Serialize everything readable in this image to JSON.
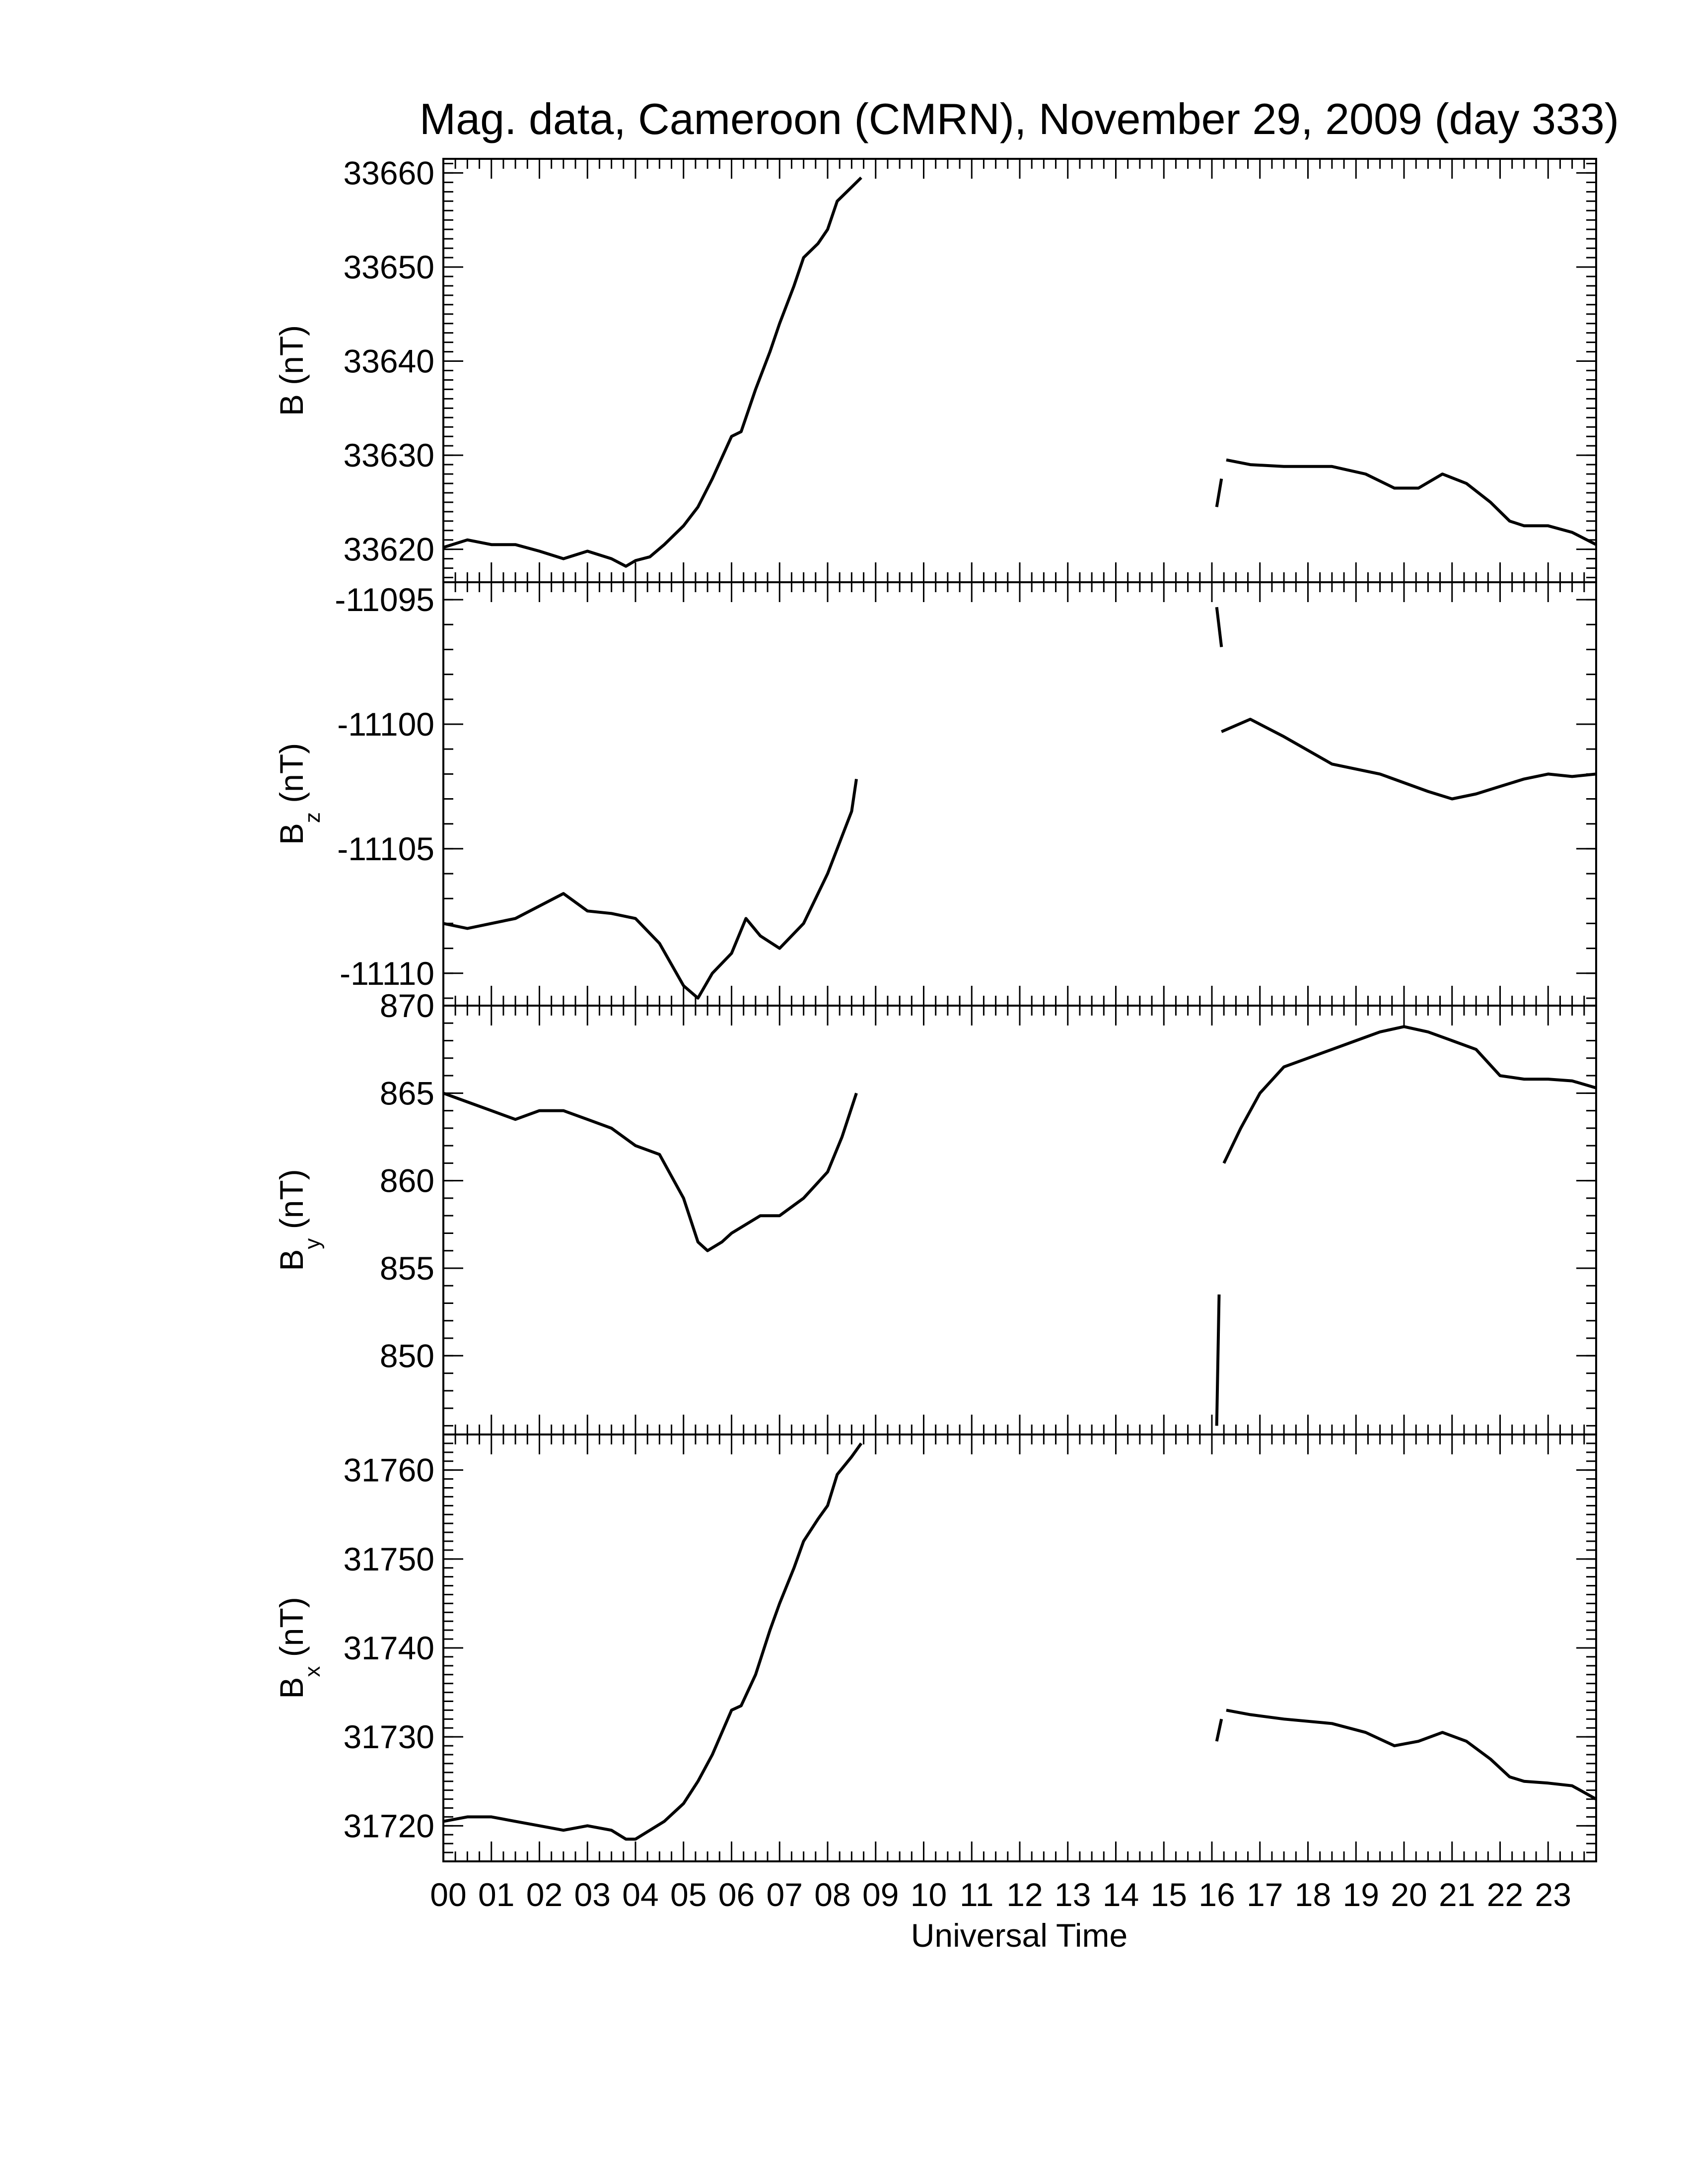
{
  "title": "Mag. data, Cameroon (CMRN), November 29, 2009 (day 333)",
  "xlabel": "Universal Time",
  "x_tick_labels": [
    "00",
    "01",
    "02",
    "03",
    "04",
    "05",
    "06",
    "07",
    "08",
    "09",
    "10",
    "11",
    "12",
    "13",
    "14",
    "15",
    "16",
    "17",
    "18",
    "19",
    "20",
    "21",
    "22",
    "23"
  ],
  "xlim": [
    0,
    24
  ],
  "chart_data": [
    {
      "type": "line",
      "ylabel": "B (nT)",
      "ylim": [
        33616.5,
        33661.5
      ],
      "yticks": [
        33620,
        33630,
        33640,
        33650,
        33660
      ],
      "series": [
        {
          "segments": [
            {
              "x": [
                0.0,
                0.5,
                1.0,
                1.5,
                2.0,
                2.5,
                3.0,
                3.5,
                3.8,
                4.0,
                4.3,
                4.6,
                5.0,
                5.3,
                5.6,
                6.0,
                6.2,
                6.5,
                6.8,
                7.0,
                7.3,
                7.5,
                7.8,
                8.0,
                8.2,
                8.5,
                8.7
              ],
              "y": [
                33620.2,
                33621,
                33620.5,
                33620.5,
                33619.8,
                33619,
                33619.8,
                33619,
                33618.2,
                33618.8,
                33619.2,
                33620.5,
                33622.5,
                33624.5,
                33627.5,
                33632,
                33632.5,
                33637,
                33641,
                33644,
                33648,
                33651,
                33652.5,
                33654,
                33657,
                33658.5,
                33659.5
              ]
            },
            {
              "x": [
                16.1,
                16.2
              ],
              "y": [
                33624.5,
                33627.5
              ]
            },
            {
              "x": [
                16.3,
                16.8,
                17.5,
                18.5,
                19.2,
                19.8,
                20.3,
                20.8,
                21.3,
                21.8,
                22.2,
                22.5,
                23.0,
                23.5,
                24.0
              ],
              "y": [
                33629.5,
                33629,
                33628.8,
                33628.8,
                33628,
                33626.5,
                33626.5,
                33628,
                33627,
                33625,
                33623,
                33622.5,
                33622.5,
                33621.8,
                33620.5
              ]
            }
          ]
        }
      ]
    },
    {
      "type": "line",
      "ylabel": "B_z (nT)",
      "ylabel_main": "B",
      "ylabel_sub": "z",
      "ylabel_unit": " (nT)",
      "ylim": [
        -11111.3,
        -11094.3
      ],
      "yticks": [
        -11095,
        -11100,
        -11105,
        -11110
      ],
      "ytick_labels": [
        "-11095",
        "-11100",
        "-11105",
        "-11110"
      ],
      "series": [
        {
          "segments": [
            {
              "x": [
                0.0,
                0.5,
                1.0,
                1.5,
                2.0,
                2.5,
                3.0,
                3.5,
                4.0,
                4.5,
                5.0,
                5.3,
                5.6,
                6.0,
                6.3,
                6.6,
                7.0,
                7.5,
                8.0,
                8.3,
                8.5,
                8.6
              ],
              "y": [
                -11108,
                -11108.2,
                -11108,
                -11107.8,
                -11107.3,
                -11106.8,
                -11107.5,
                -11107.6,
                -11107.8,
                -11108.8,
                -11110.5,
                -11111,
                -11110,
                -11109.2,
                -11107.8,
                -11108.5,
                -11109,
                -11108,
                -11106,
                -11104.5,
                -11103.5,
                -11102.2
              ]
            },
            {
              "x": [
                16.1,
                16.2
              ],
              "y": [
                -11095.3,
                -11096.9
              ]
            },
            {
              "x": [
                16.2,
                16.8,
                17.5,
                18.5,
                19.5,
                20.5,
                21.0,
                21.5,
                22.0,
                22.5,
                23.0,
                23.5,
                24.0
              ],
              "y": [
                -11100.3,
                -11099.8,
                -11100.5,
                -11101.6,
                -11102,
                -11102.7,
                -11103,
                -11102.8,
                -11102.5,
                -11102.2,
                -11102,
                -11102.1,
                -11102
              ]
            }
          ]
        }
      ]
    },
    {
      "type": "line",
      "ylabel": "B_y (nT)",
      "ylabel_main": "B",
      "ylabel_sub": "y",
      "ylabel_unit": " (nT)",
      "ylim": [
        845.5,
        870
      ],
      "yticks": [
        850,
        855,
        860,
        865,
        870
      ],
      "series": [
        {
          "segments": [
            {
              "x": [
                0.0,
                0.5,
                1.0,
                1.5,
                2.0,
                2.5,
                3.0,
                3.5,
                4.0,
                4.5,
                5.0,
                5.3,
                5.5,
                5.8,
                6.0,
                6.3,
                6.6,
                7.0,
                7.5,
                8.0,
                8.3,
                8.6
              ],
              "y": [
                865,
                864.5,
                864,
                863.5,
                864,
                864,
                863.5,
                863,
                862,
                861.5,
                859,
                856.5,
                856,
                856.5,
                857,
                857.5,
                858,
                858,
                859,
                860.5,
                862.5,
                865
              ]
            },
            {
              "x": [
                16.1,
                16.15
              ],
              "y": [
                846,
                853.5
              ]
            },
            {
              "x": [
                16.25,
                16.6,
                17.0,
                17.5,
                18.0,
                18.5,
                19.0,
                19.5,
                20.0,
                20.5,
                21.0,
                21.5,
                22.0,
                22.5,
                23.0,
                23.5,
                24.0
              ],
              "y": [
                861,
                863,
                865,
                866.5,
                867,
                867.5,
                868,
                868.5,
                868.8,
                868.5,
                868,
                867.5,
                866,
                865.8,
                865.8,
                865.7,
                865.3
              ]
            }
          ]
        }
      ]
    },
    {
      "type": "line",
      "ylabel": "B_x (nT)",
      "ylabel_main": "B",
      "ylabel_sub": "x",
      "ylabel_unit": " (nT)",
      "ylim": [
        31716,
        31764
      ],
      "yticks": [
        31720,
        31730,
        31740,
        31750,
        31760
      ],
      "series": [
        {
          "segments": [
            {
              "x": [
                0.0,
                0.5,
                1.0,
                1.5,
                2.0,
                2.5,
                3.0,
                3.5,
                3.8,
                4.0,
                4.3,
                4.6,
                5.0,
                5.3,
                5.6,
                6.0,
                6.2,
                6.5,
                6.8,
                7.0,
                7.3,
                7.5,
                7.8,
                8.0,
                8.2,
                8.5,
                8.7
              ],
              "y": [
                31720.5,
                31721,
                31721,
                31720.5,
                31720,
                31719.5,
                31720,
                31719.5,
                31718.5,
                31718.5,
                31719.5,
                31720.5,
                31722.5,
                31725,
                31728,
                31733,
                31733.5,
                31737,
                31742,
                31745,
                31749,
                31752,
                31754.5,
                31756,
                31759.5,
                31761.5,
                31763
              ]
            },
            {
              "x": [
                16.1,
                16.2
              ],
              "y": [
                31729.5,
                31732
              ]
            },
            {
              "x": [
                16.3,
                16.8,
                17.5,
                18.5,
                19.2,
                19.8,
                20.3,
                20.8,
                21.3,
                21.8,
                22.2,
                22.5,
                23.0,
                23.5,
                24.0
              ],
              "y": [
                31733,
                31732.5,
                31732,
                31731.5,
                31730.5,
                31729,
                31729.5,
                31730.5,
                31729.5,
                31727.5,
                31725.5,
                31725,
                31724.8,
                31724.5,
                31723
              ]
            }
          ]
        }
      ]
    }
  ]
}
